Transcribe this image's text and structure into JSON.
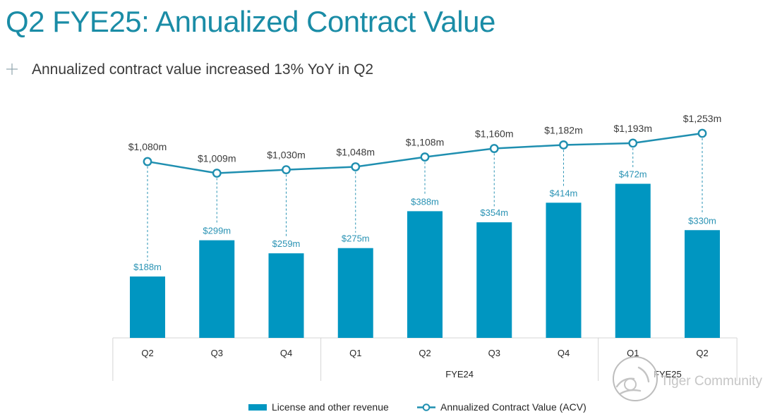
{
  "slide": {
    "title": "Q2 FYE25: Annualized Contract Value",
    "bullet_icon": "plus-icon",
    "subtitle": "Annualized contract value increased 13% YoY in Q2"
  },
  "colors": {
    "title": "#1a8ca6",
    "subtitle": "#3a3a3a",
    "bullet": "#8fa5ae",
    "bar_label": "#2a93b4",
    "line_label": "#3b3b3b",
    "axis": "#d4d4d4"
  },
  "chart_data": {
    "type": "bar",
    "categories": [
      "Q2",
      "Q3",
      "Q4",
      "Q1",
      "Q2",
      "Q3",
      "Q4",
      "Q1",
      "Q2"
    ],
    "groups": [
      {
        "label": "",
        "span": 3
      },
      {
        "label": "FYE24",
        "span": 4
      },
      {
        "label": "FYE25",
        "span": 2
      }
    ],
    "series": [
      {
        "name": "License and other revenue",
        "type": "bar",
        "color": "#0096c1",
        "values": [
          188,
          299,
          259,
          275,
          388,
          354,
          414,
          472,
          330
        ],
        "labels": [
          "$188m",
          "$299m",
          "$259m",
          "$275m",
          "$388m",
          "$354m",
          "$414m",
          "$472m",
          "$330m"
        ]
      },
      {
        "name": "Annualized Contract Value (ACV)",
        "type": "line",
        "color": "#1f8fb0",
        "values": [
          1080,
          1009,
          1030,
          1048,
          1108,
          1160,
          1182,
          1193,
          1253
        ],
        "labels": [
          "$1,080m",
          "$1,009m",
          "$1,030m",
          "$1,048m",
          "$1,108m",
          "$1,160m",
          "$1,182m",
          "$1,193m",
          "$1,253m"
        ]
      }
    ],
    "xlabel": "",
    "ylabel": "",
    "ylim": [
      0,
      700
    ],
    "y2lim": [
      0,
      1400
    ],
    "grid": false,
    "legend_position": "bottom"
  },
  "watermark": {
    "text": "Tiger Community",
    "icon": "tiger-logo-icon"
  }
}
